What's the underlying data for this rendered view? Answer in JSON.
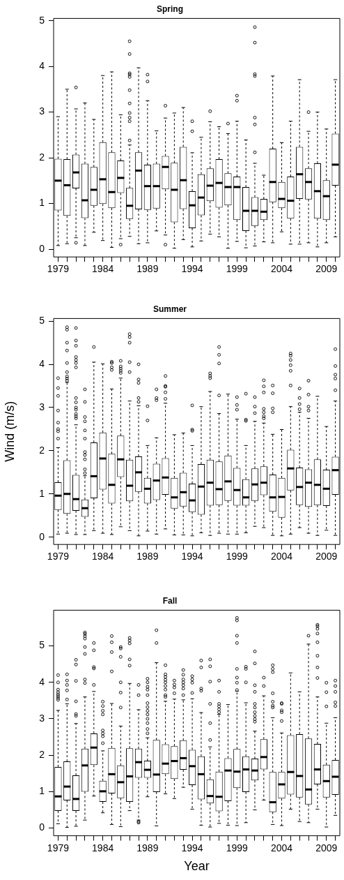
{
  "chart_data": [
    {
      "type": "box",
      "title": "Spring",
      "categories": [
        "1979",
        null,
        null,
        null,
        null,
        "1984",
        null,
        null,
        null,
        null,
        "1989",
        null,
        null,
        null,
        null,
        "1994",
        null,
        null,
        null,
        null,
        "1999",
        null,
        null,
        null,
        null,
        "2004",
        null,
        null,
        null,
        null,
        "2009",
        null
      ],
      "ylim": [
        -0.17,
        5.05
      ],
      "yticks": [
        0,
        1,
        2,
        3,
        4,
        5
      ],
      "series": [
        {
          "color": "#000000",
          "boxes": [
            {
              "low": 0.08,
              "q1": 0.85,
              "median": 1.5,
              "q3": 1.98,
              "high": 2.9
            },
            {
              "low": 0.12,
              "q1": 0.73,
              "median": 1.4,
              "q3": 1.97,
              "high": 3.5
            },
            {
              "low": 0.25,
              "q1": 1.33,
              "median": 1.68,
              "q3": 2.07,
              "high": 3.07,
              "outliers": [
                3.54,
                0.14
              ]
            },
            {
              "low": 0.08,
              "q1": 0.68,
              "median": 1.07,
              "q3": 1.87,
              "high": 3.2
            },
            {
              "low": 0.37,
              "q1": 0.95,
              "median": 1.3,
              "q3": 1.8,
              "high": 2.84
            },
            {
              "low": 0.19,
              "q1": 0.99,
              "median": 1.53,
              "q3": 2.34,
              "high": 3.8
            },
            {
              "low": 0.04,
              "q1": 0.9,
              "median": 1.25,
              "q3": 2.12,
              "high": 3.88
            },
            {
              "low": 0.23,
              "q1": 1.23,
              "median": 1.56,
              "q3": 1.94,
              "high": 2.94,
              "outliers": [
                0.1
              ]
            },
            {
              "low": 0.28,
              "q1": 0.66,
              "median": 0.95,
              "q3": 1.34,
              "high": 2.28,
              "outliers": [
                2.38,
                2.8,
                2.88,
                2.98,
                3.19,
                3.48,
                3.77,
                3.82,
                3.85,
                4.27,
                4.55
              ]
            },
            {
              "low": 0.12,
              "q1": 0.87,
              "median": 1.72,
              "q3": 2.12,
              "high": 3.97
            },
            {
              "low": 0.14,
              "q1": 0.86,
              "median": 1.38,
              "q3": 1.85,
              "high": 3.25,
              "outliers": [
                3.67,
                3.82
              ]
            },
            {
              "low": 0.4,
              "q1": 0.89,
              "median": 1.38,
              "q3": 1.87,
              "high": 2.59
            },
            {
              "low": 0.31,
              "q1": 1.31,
              "median": 1.8,
              "q3": 2.04,
              "high": 2.87,
              "outliers": [
                3.14,
                0.1
              ]
            },
            {
              "low": 0.02,
              "q1": 0.59,
              "median": 1.3,
              "q3": 1.89,
              "high": 2.98
            },
            {
              "low": 0.21,
              "q1": 0.88,
              "median": 1.51,
              "q3": 2.24,
              "high": 3.1
            },
            {
              "low": 0.05,
              "q1": 0.46,
              "median": 0.96,
              "q3": 1.27,
              "high": 2.11,
              "outliers": [
                2.58,
                2.8
              ]
            },
            {
              "low": 0.18,
              "q1": 0.74,
              "median": 1.13,
              "q3": 1.64,
              "high": 2.45
            },
            {
              "low": 0.33,
              "q1": 1.05,
              "median": 1.39,
              "q3": 1.77,
              "high": 2.79,
              "outliers": [
                3.02
              ]
            },
            {
              "low": 0.27,
              "q1": 0.91,
              "median": 1.45,
              "q3": 1.97,
              "high": 2.68
            },
            {
              "low": 0.02,
              "q1": 0.96,
              "median": 1.36,
              "q3": 1.66,
              "high": 2.53,
              "outliers": [
                2.75
              ]
            },
            {
              "low": 0.17,
              "q1": 0.64,
              "median": 1.36,
              "q3": 1.59,
              "high": 2.8,
              "outliers": [
                3.25,
                3.36
              ]
            },
            {
              "low": 0.03,
              "q1": 0.4,
              "median": 0.84,
              "q3": 1.36,
              "high": 2.39
            },
            {
              "low": 0.07,
              "q1": 0.51,
              "median": 0.84,
              "q3": 1.14,
              "high": 1.88,
              "outliers": [
                2.12,
                2.73,
                2.88,
                3.79,
                3.83,
                4.52,
                4.86
              ]
            },
            {
              "low": 0.16,
              "q1": 0.64,
              "median": 0.82,
              "q3": 1.1,
              "high": 1.62
            },
            {
              "low": 0.14,
              "q1": 1.03,
              "median": 1.47,
              "q3": 2.2,
              "high": 3.79
            },
            {
              "low": 0.38,
              "q1": 0.9,
              "median": 1.1,
              "q3": 1.47,
              "high": 2.33
            },
            {
              "low": 0.11,
              "q1": 0.67,
              "median": 1.06,
              "q3": 1.59,
              "high": 2.8
            },
            {
              "low": 0.11,
              "q1": 1.1,
              "median": 1.64,
              "q3": 2.24,
              "high": 3.71
            },
            {
              "low": 0.14,
              "q1": 1.09,
              "median": 1.47,
              "q3": 1.77,
              "high": 2.58,
              "outliers": [
                3.0
              ]
            },
            {
              "low": 0.05,
              "q1": 0.67,
              "median": 1.27,
              "q3": 1.88,
              "high": 3.0
            },
            {
              "low": 0.14,
              "q1": 0.64,
              "median": 1.16,
              "q3": 1.51,
              "high": 2.63
            },
            {
              "low": 0.27,
              "q1": 1.39,
              "median": 1.85,
              "q3": 2.53,
              "high": 3.71
            }
          ]
        }
      ]
    },
    {
      "type": "box",
      "title": "Summer",
      "ylabel": "Wind (m/s)",
      "categories": [
        "1979",
        null,
        null,
        null,
        null,
        "1984",
        null,
        null,
        null,
        null,
        "1989",
        null,
        null,
        null,
        null,
        "1994",
        null,
        null,
        null,
        null,
        "1999",
        null,
        null,
        null,
        null,
        "2004",
        null,
        null,
        null,
        null,
        "2009",
        null
      ],
      "ylim": [
        -0.17,
        5.06
      ],
      "yticks": [
        0,
        1,
        2,
        3,
        4,
        5
      ],
      "series": [
        {
          "color": "#000000",
          "boxes": [
            {
              "low": 0.07,
              "q1": 0.63,
              "median": 0.96,
              "q3": 1.27,
              "high": 2.07,
              "outliers": [
                2.28,
                2.45,
                2.5,
                2.65,
                2.93,
                3.27,
                3.45,
                3.68
              ]
            },
            {
              "low": 0.09,
              "q1": 0.54,
              "median": 1.0,
              "q3": 1.78,
              "high": 3.58,
              "outliers": [
                3.62,
                3.67,
                3.72,
                3.82,
                4.03,
                4.32,
                4.5,
                4.8,
                4.86
              ]
            },
            {
              "low": 0.06,
              "q1": 0.61,
              "median": 0.88,
              "q3": 1.44,
              "high": 2.6,
              "outliers": [
                2.75,
                2.8,
                2.85,
                2.95,
                3.0,
                3.12,
                3.22,
                3.93,
                4.03,
                4.1,
                4.17,
                4.43,
                4.55,
                4.84
              ]
            },
            {
              "low": 0.06,
              "q1": 0.47,
              "median": 0.67,
              "q3": 0.87,
              "high": 1.42,
              "outliers": [
                1.48,
                1.57,
                1.8,
                1.9,
                1.97,
                2.28,
                2.47,
                2.68,
                2.78,
                3.13,
                3.42
              ]
            },
            {
              "low": 0.15,
              "q1": 0.9,
              "median": 1.41,
              "q3": 2.19,
              "high": 4.05,
              "outliers": [
                4.4
              ]
            },
            {
              "low": 0.09,
              "q1": 1.1,
              "median": 1.82,
              "q3": 2.42,
              "high": 4.01
            },
            {
              "low": 0.06,
              "q1": 0.78,
              "median": 1.21,
              "q3": 1.93,
              "high": 3.43,
              "outliers": [
                3.87,
                3.93,
                4.03,
                4.06
              ]
            },
            {
              "low": 0.24,
              "q1": 1.39,
              "median": 1.8,
              "q3": 2.35,
              "high": 3.68,
              "outliers": [
                3.8,
                3.85,
                3.9,
                3.95,
                4.08
              ]
            },
            {
              "low": 0.15,
              "q1": 0.83,
              "median": 1.19,
              "q3": 1.79,
              "high": 3.15,
              "outliers": [
                3.82,
                4.05,
                4.5,
                4.63,
                4.7
              ]
            },
            {
              "low": 0.03,
              "q1": 1.05,
              "median": 1.5,
              "q3": 1.87,
              "high": 3.04,
              "outliers": [
                3.13,
                3.22,
                3.57,
                3.65,
                4.0
              ]
            },
            {
              "low": 0.14,
              "q1": 0.78,
              "median": 1.12,
              "q3": 1.37,
              "high": 2.12,
              "outliers": [
                2.7,
                3.03
              ]
            },
            {
              "low": 0.07,
              "q1": 0.86,
              "median": 1.31,
              "q3": 1.7,
              "high": 2.3,
              "outliers": [
                3.17,
                3.22,
                3.42
              ]
            },
            {
              "low": 0.19,
              "q1": 0.98,
              "median": 1.38,
              "q3": 1.83,
              "high": 3.1,
              "outliers": [
                3.2,
                3.35,
                3.48,
                3.5,
                3.73
              ]
            },
            {
              "low": 0.05,
              "q1": 0.66,
              "median": 0.92,
              "q3": 1.37,
              "high": 2.37
            },
            {
              "low": 0.05,
              "q1": 0.71,
              "median": 1.04,
              "q3": 1.49,
              "high": 2.41
            },
            {
              "low": 0.03,
              "q1": 0.58,
              "median": 0.85,
              "q3": 1.24,
              "high": 2.12,
              "outliers": [
                2.46,
                2.49,
                3.05
              ]
            },
            {
              "low": 0.1,
              "q1": 0.52,
              "median": 1.17,
              "q3": 1.69,
              "high": 3.02
            },
            {
              "low": 0.04,
              "q1": 0.73,
              "median": 1.26,
              "q3": 1.79,
              "high": 3.37,
              "outliers": [
                3.68,
                3.73,
                3.79
              ]
            },
            {
              "low": 0.09,
              "q1": 0.74,
              "median": 1.11,
              "q3": 1.75,
              "high": 2.86,
              "outliers": [
                3.28,
                4.02,
                4.22,
                4.4
              ]
            },
            {
              "low": 0.07,
              "q1": 0.84,
              "median": 1.29,
              "q3": 1.89,
              "high": 3.31
            },
            {
              "low": 0.07,
              "q1": 0.73,
              "median": 1.09,
              "q3": 1.6,
              "high": 2.73,
              "outliers": [
                2.95,
                3.06,
                3.24
              ]
            },
            {
              "low": 0.1,
              "q1": 0.73,
              "median": 0.92,
              "q3": 1.34,
              "high": 2.12,
              "outliers": [
                2.69,
                2.72,
                3.32
              ]
            },
            {
              "low": 0.25,
              "q1": 0.84,
              "median": 1.22,
              "q3": 1.59,
              "high": 2.68,
              "outliers": [
                2.87,
                3.02,
                3.24
              ]
            },
            {
              "low": 0.22,
              "q1": 0.97,
              "median": 1.26,
              "q3": 1.64,
              "high": 2.64,
              "outliers": [
                2.75,
                2.8,
                2.89,
                2.97,
                3.35,
                3.49,
                3.63
              ]
            },
            {
              "low": 0.04,
              "q1": 0.59,
              "median": 0.92,
              "q3": 1.45,
              "high": 2.38,
              "outliers": [
                2.89,
                2.98,
                3.33,
                3.51
              ]
            },
            {
              "low": 0.03,
              "q1": 0.45,
              "median": 0.93,
              "q3": 1.37,
              "high": 2.49
            },
            {
              "low": 0.07,
              "q1": 1.08,
              "median": 1.59,
              "q3": 2.02,
              "high": 3.02,
              "outliers": [
                3.51,
                3.85,
                3.98,
                4.1,
                4.2,
                4.25
              ]
            },
            {
              "low": 0.22,
              "q1": 0.74,
              "median": 1.16,
              "q3": 1.61,
              "high": 2.89,
              "outliers": [
                2.96,
                3.08,
                3.22,
                3.44
              ]
            },
            {
              "low": 0.09,
              "q1": 0.7,
              "median": 1.26,
              "q3": 1.57,
              "high": 2.75,
              "outliers": [
                2.93,
                3.02,
                3.3,
                3.62
              ]
            },
            {
              "low": 0.04,
              "q1": 0.74,
              "median": 1.21,
              "q3": 1.8,
              "high": 3.26
            },
            {
              "low": 0.16,
              "q1": 0.72,
              "median": 1.12,
              "q3": 1.56,
              "high": 2.56
            },
            {
              "low": 0.04,
              "q1": 0.98,
              "median": 1.55,
              "q3": 1.86,
              "high": 3.15,
              "outliers": [
                3.4,
                3.67,
                3.76,
                3.96,
                4.35
              ]
            }
          ]
        }
      ]
    },
    {
      "type": "box",
      "title": "Fall",
      "xlabel": "Year",
      "categories": [
        "1979",
        null,
        null,
        null,
        null,
        "1984",
        null,
        null,
        null,
        null,
        "1989",
        null,
        null,
        null,
        null,
        "1994",
        null,
        null,
        null,
        null,
        "1999",
        null,
        null,
        null,
        null,
        "2004",
        null,
        null,
        null,
        null,
        "2009",
        null
      ],
      "ylim": [
        -0.21,
        5.98
      ],
      "yticks": [
        0,
        1,
        2,
        3,
        4,
        5
      ],
      "series": [
        {
          "color": "#000000",
          "boxes": [
            {
              "low": 0.12,
              "q1": 0.47,
              "median": 0.87,
              "q3": 1.68,
              "high": 3.23,
              "outliers": [
                3.52,
                3.57,
                3.62,
                3.67,
                3.73,
                3.8,
                4.0,
                4.2
              ]
            },
            {
              "low": 0.02,
              "q1": 0.76,
              "median": 1.14,
              "q3": 1.83,
              "high": 3.41,
              "outliers": [
                3.53,
                3.78,
                3.93,
                4.05,
                4.22
              ]
            },
            {
              "low": 0.05,
              "q1": 0.47,
              "median": 0.8,
              "q3": 1.45,
              "high": 2.87,
              "outliers": [
                3.08,
                3.13,
                3.48,
                4.04,
                4.49,
                4.62
              ]
            },
            {
              "low": 0.22,
              "q1": 1.0,
              "median": 1.72,
              "q3": 2.18,
              "high": 3.6,
              "outliers": [
                3.98,
                4.08,
                4.78,
                4.97,
                5.2,
                5.27,
                5.33,
                5.37
              ]
            },
            {
              "low": 0.88,
              "q1": 1.73,
              "median": 2.21,
              "q3": 2.6,
              "high": 3.75,
              "outliers": [
                3.93,
                4.38,
                4.42,
                4.88,
                5.08
              ]
            },
            {
              "low": 0.42,
              "q1": 0.72,
              "median": 1.01,
              "q3": 1.3,
              "high": 2.12,
              "outliers": [
                2.33,
                2.52,
                2.6,
                2.68,
                3.12,
                3.22,
                3.35,
                3.47
              ]
            },
            {
              "low": 0.1,
              "q1": 0.95,
              "median": 1.48,
              "q3": 2.2,
              "high": 3.42,
              "outliers": [
                4.3,
                4.83,
                5.1,
                5.27
              ]
            },
            {
              "low": 0.04,
              "q1": 0.82,
              "median": 1.26,
              "q3": 1.72,
              "high": 2.8,
              "outliers": [
                3.31,
                3.72,
                4.0,
                4.7,
                4.93,
                4.97
              ]
            },
            {
              "low": 0.48,
              "q1": 0.72,
              "median": 1.42,
              "q3": 2.19,
              "high": 3.97,
              "outliers": [
                4.46,
                4.63,
                5.07,
                5.15,
                5.22
              ]
            },
            {
              "low": 0.22,
              "q1": 1.38,
              "median": 1.81,
              "q3": 2.18,
              "high": 3.25,
              "outliers": [
                3.65,
                3.93,
                0.15,
                0.18
              ]
            },
            {
              "low": 0.86,
              "q1": 1.38,
              "median": 1.6,
              "q3": 1.85,
              "high": 2.48,
              "outliers": [
                2.6,
                2.72,
                2.88,
                3.0,
                3.12,
                3.22,
                3.32,
                3.43,
                3.65,
                3.8,
                3.88,
                4.0,
                4.1
              ]
            },
            {
              "low": 0.06,
              "q1": 0.99,
              "median": 1.47,
              "q3": 2.42,
              "high": 4.54,
              "outliers": [
                5.08,
                5.43
              ]
            },
            {
              "low": 0.94,
              "q1": 1.48,
              "median": 1.77,
              "q3": 2.3,
              "high": 3.48,
              "outliers": [
                3.6,
                3.65,
                3.8,
                3.9,
                4.0,
                4.07,
                4.15,
                4.22,
                4.47
              ]
            },
            {
              "low": 0.81,
              "q1": 1.35,
              "median": 1.84,
              "q3": 2.25,
              "high": 3.54,
              "outliers": [
                3.7,
                3.86,
                3.94,
                4.05
              ]
            },
            {
              "low": 1.12,
              "q1": 1.6,
              "median": 1.92,
              "q3": 2.41,
              "high": 3.52,
              "outliers": [
                3.65,
                3.83,
                3.92,
                4.0,
                4.08,
                4.21,
                4.34
              ]
            },
            {
              "low": 0.52,
              "q1": 1.18,
              "median": 1.7,
              "q3": 2.15,
              "high": 3.55,
              "outliers": [
                3.71,
                3.99,
                4.08,
                4.17
              ]
            },
            {
              "low": 0.08,
              "q1": 0.79,
              "median": 1.48,
              "q3": 1.97,
              "high": 3.17,
              "outliers": [
                3.77,
                3.83,
                4.41,
                4.6
              ]
            },
            {
              "low": 0.03,
              "q1": 0.68,
              "median": 0.88,
              "q3": 1.34,
              "high": 2.23,
              "outliers": [
                2.42,
                2.88,
                3.41,
                4.02,
                4.44,
                4.63
              ]
            },
            {
              "low": 0.13,
              "q1": 0.46,
              "median": 0.86,
              "q3": 1.55,
              "high": 3.12,
              "outliers": [
                3.18,
                3.26,
                3.34,
                3.41,
                3.74,
                4.05
              ]
            },
            {
              "low": 0.08,
              "q1": 0.74,
              "median": 1.58,
              "q3": 1.92,
              "high": 3.39
            },
            {
              "low": 0.07,
              "q1": 1.1,
              "median": 1.55,
              "q3": 2.17,
              "high": 3.76,
              "outliers": [
                3.79,
                3.99,
                4.13,
                4.37,
                5.08,
                5.28,
                5.7,
                5.77
              ]
            },
            {
              "low": 0.15,
              "q1": 0.99,
              "median": 1.61,
              "q3": 1.97,
              "high": 3.44,
              "outliers": [
                4.0,
                4.37,
                4.43
              ]
            },
            {
              "low": 0.5,
              "q1": 1.31,
              "median": 1.58,
              "q3": 1.91,
              "high": 2.66,
              "outliers": [
                2.92,
                2.99,
                3.08,
                3.18,
                3.31,
                3.41,
                3.74,
                3.92,
                4.52,
                4.85
              ]
            },
            {
              "low": 0.77,
              "q1": 1.61,
              "median": 1.95,
              "q3": 2.44,
              "high": 3.63,
              "outliers": [
                3.9,
                4.13
              ]
            },
            {
              "low": 0.1,
              "q1": 0.44,
              "median": 0.71,
              "q3": 1.54,
              "high": 3.03,
              "outliers": [
                3.31,
                3.36,
                3.47,
                3.7,
                4.28,
                4.37,
                4.47
              ]
            },
            {
              "low": 0.07,
              "q1": 0.81,
              "median": 1.2,
              "q3": 1.54,
              "high": 2.61,
              "outliers": [
                2.94,
                3.18,
                3.23,
                3.41,
                3.43
              ]
            },
            {
              "low": 0.52,
              "q1": 0.92,
              "median": 1.54,
              "q3": 2.55,
              "high": 4.26
            },
            {
              "low": 0.18,
              "q1": 0.84,
              "median": 1.43,
              "q3": 2.58,
              "high": 3.74
            },
            {
              "low": 0.15,
              "q1": 0.65,
              "median": 1.06,
              "q3": 2.46,
              "high": 5.05,
              "outliers": [
                5.28
              ]
            },
            {
              "low": 0.52,
              "q1": 1.2,
              "median": 1.61,
              "q3": 2.31,
              "high": 3.6,
              "outliers": [
                4.12,
                4.41,
                4.73,
                5.1,
                5.34,
                5.47,
                5.54,
                5.58
              ]
            },
            {
              "low": 0.03,
              "q1": 0.84,
              "median": 1.29,
              "q3": 1.74,
              "high": 2.88,
              "outliers": [
                3.34,
                3.73,
                3.99
              ]
            },
            {
              "low": 0.35,
              "q1": 0.91,
              "median": 1.41,
              "q3": 1.87,
              "high": 3.03,
              "outliers": [
                3.35,
                3.45,
                3.74,
                3.9,
                4.05
              ]
            }
          ]
        }
      ]
    }
  ]
}
